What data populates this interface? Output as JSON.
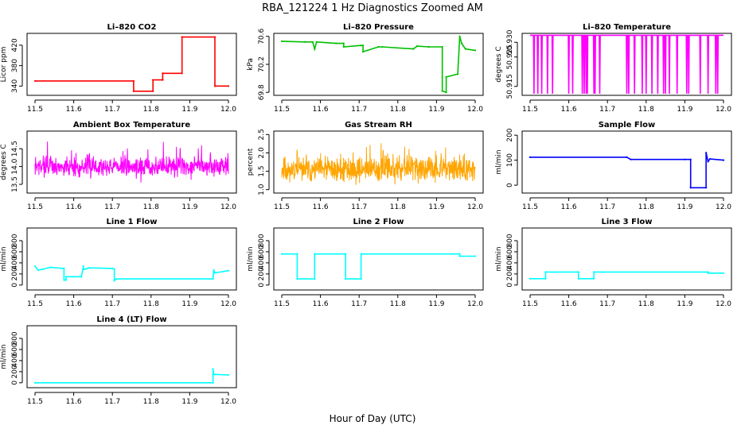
{
  "figure": {
    "title": "RBA_121224  1 Hz Diagnostics Zoomed AM",
    "xlabel": "Hour of Day (UTC)"
  },
  "chart_data": [
    {
      "type": "line",
      "title": "Li–820 CO2",
      "ylabel": "Licor ppm",
      "color": "#ff0000",
      "xlim": [
        11.5,
        12.0
      ],
      "ylim": [
        325,
        440
      ],
      "xticks": [
        "11.5",
        "11.6",
        "11.7",
        "11.8",
        "11.9",
        "12.0"
      ],
      "yticks": [
        {
          "v": 340,
          "t": "340"
        },
        {
          "v": 380,
          "t": "380"
        },
        {
          "v": 420,
          "t": "420"
        }
      ],
      "x": [
        11.5,
        11.755,
        11.755,
        11.805,
        11.805,
        11.83,
        11.83,
        11.88,
        11.88,
        11.965,
        11.965,
        12.0
      ],
      "y": [
        350,
        350,
        330,
        330,
        352,
        352,
        365,
        365,
        436,
        436,
        340,
        340
      ]
    },
    {
      "type": "line",
      "title": "Li–820 Pressure",
      "ylabel": "kPa",
      "color": "#00c000",
      "xlim": [
        11.5,
        12.0
      ],
      "ylim": [
        69.78,
        70.62
      ],
      "xticks": [
        "11.5",
        "11.6",
        "11.7",
        "11.8",
        "11.9",
        "12.0"
      ],
      "yticks": [
        {
          "v": 69.8,
          "t": "69.8"
        },
        {
          "v": 70.2,
          "t": "70.2"
        },
        {
          "v": 70.6,
          "t": "70.6"
        }
      ],
      "x": [
        11.5,
        11.56,
        11.58,
        11.585,
        11.59,
        11.64,
        11.66,
        11.66,
        11.705,
        11.71,
        11.71,
        11.75,
        11.76,
        11.84,
        11.85,
        11.88,
        11.915,
        11.915,
        11.925,
        11.925,
        11.955,
        11.96,
        11.965,
        11.975,
        12.0
      ],
      "y": [
        70.53,
        70.52,
        70.52,
        70.42,
        70.52,
        70.5,
        70.5,
        70.45,
        70.47,
        70.47,
        70.38,
        70.45,
        70.45,
        70.42,
        70.46,
        70.45,
        70.45,
        69.82,
        69.8,
        70.02,
        70.06,
        70.6,
        70.5,
        70.42,
        70.4
      ]
    },
    {
      "type": "line",
      "title": "Li–820 Temperature",
      "ylabel": "degrees C",
      "color": "#ff00ff",
      "xlim": [
        11.5,
        12.0
      ],
      "ylim": [
        50.9125,
        50.9325
      ],
      "xticks": [
        "11.5",
        "11.6",
        "11.7",
        "11.8",
        "11.9",
        "12.0"
      ],
      "yticks": [
        {
          "v": 50.915,
          "t": "50.915"
        },
        {
          "v": 50.925,
          "t": "50.925"
        },
        {
          "v": 50.93,
          "t": "50.930"
        }
      ],
      "flat": 50.9324,
      "low": 50.9125,
      "dips": [
        11.51,
        11.52,
        11.53,
        11.545,
        11.558,
        11.6,
        11.61,
        11.635,
        11.64,
        11.645,
        11.648,
        11.665,
        11.668,
        11.68,
        11.75,
        11.755,
        11.77,
        11.79,
        11.8,
        11.815,
        11.83,
        11.845,
        11.85,
        11.86,
        11.88,
        11.905,
        11.91,
        11.94,
        11.96,
        11.98,
        11.985
      ]
    },
    {
      "type": "line",
      "title": "Ambient Box Temperature",
      "ylabel": "degrees C",
      "color": "#ff00ff",
      "xlim": [
        11.5,
        12.0
      ],
      "ylim": [
        13.3,
        14.95
      ],
      "xticks": [
        "11.5",
        "11.6",
        "11.7",
        "11.8",
        "11.9",
        "12.0"
      ],
      "yticks": [
        {
          "v": 13.5,
          "t": "13.5"
        },
        {
          "v": 14.0,
          "t": "14.0"
        },
        {
          "v": 14.5,
          "t": "14.5"
        }
      ],
      "noise": {
        "center": 14.0,
        "spread": 0.45,
        "points": 700,
        "seed": 7
      }
    },
    {
      "type": "line",
      "title": "Gas Stream RH",
      "ylabel": "percent",
      "color": "#ffa500",
      "xlim": [
        11.5,
        12.0
      ],
      "ylim": [
        0.95,
        2.55
      ],
      "xticks": [
        "11.5",
        "11.6",
        "11.7",
        "11.8",
        "11.9",
        "12.0"
      ],
      "yticks": [
        {
          "v": 1.0,
          "t": "1.0"
        },
        {
          "v": 1.5,
          "t": "1.5"
        },
        {
          "v": 2.0,
          "t": "2.0"
        },
        {
          "v": 2.5,
          "t": "2.5"
        }
      ],
      "noise": {
        "center": 1.55,
        "spread": 0.55,
        "points": 700,
        "seed": 11
      }
    },
    {
      "type": "line",
      "title": "Sample Flow",
      "ylabel": "ml/min",
      "color": "#0000ff",
      "xlim": [
        11.5,
        12.0
      ],
      "ylim": [
        -25,
        210
      ],
      "xticks": [
        "11.5",
        "11.6",
        "11.7",
        "11.8",
        "11.9",
        "12.0"
      ],
      "yticks": [
        {
          "v": 0,
          "t": "0"
        },
        {
          "v": 100,
          "t": "100"
        },
        {
          "v": 200,
          "t": "200"
        }
      ],
      "x": [
        11.5,
        11.75,
        11.76,
        11.9,
        11.915,
        11.915,
        11.955,
        11.955,
        11.96,
        11.965,
        12.0
      ],
      "y": [
        112,
        112,
        103,
        103,
        103,
        -10,
        -10,
        130,
        95,
        105,
        100
      ]
    },
    {
      "type": "line",
      "title": "Line 1 Flow",
      "ylabel": "ml/min",
      "color": "#00ffff",
      "xlim": [
        11.5,
        12.0
      ],
      "ylim": [
        -60,
        1000
      ],
      "xticks": [
        "11.5",
        "11.6",
        "11.7",
        "11.8",
        "11.9",
        "12.0"
      ],
      "yticks": [
        {
          "v": 0,
          "t": "0"
        },
        {
          "v": 200,
          "t": "200"
        },
        {
          "v": 400,
          "t": "400"
        },
        {
          "v": 600,
          "t": "600"
        },
        {
          "v": 800,
          "t": "800"
        }
      ],
      "x": [
        11.5,
        11.508,
        11.52,
        11.54,
        11.575,
        11.575,
        11.58,
        11.58,
        11.62,
        11.625,
        11.625,
        11.64,
        11.7,
        11.705,
        11.705,
        11.71,
        11.96,
        11.962,
        11.965,
        12.0
      ],
      "y": [
        340,
        270,
        285,
        320,
        300,
        90,
        90,
        150,
        150,
        340,
        280,
        310,
        300,
        290,
        80,
        110,
        110,
        270,
        220,
        260
      ]
    },
    {
      "type": "line",
      "title": "Line 2 Flow",
      "ylabel": "ml/min",
      "color": "#00ffff",
      "xlim": [
        11.5,
        12.0
      ],
      "ylim": [
        -60,
        1000
      ],
      "xticks": [
        "11.5",
        "11.6",
        "11.7",
        "11.8",
        "11.9",
        "12.0"
      ],
      "yticks": [
        {
          "v": 0,
          "t": "0"
        },
        {
          "v": 200,
          "t": "200"
        },
        {
          "v": 400,
          "t": "400"
        },
        {
          "v": 600,
          "t": "600"
        },
        {
          "v": 800,
          "t": "800"
        }
      ],
      "x": [
        11.5,
        11.54,
        11.54,
        11.585,
        11.585,
        11.665,
        11.665,
        11.705,
        11.705,
        11.96,
        11.96,
        12.0
      ],
      "y": [
        560,
        560,
        110,
        110,
        560,
        560,
        110,
        110,
        560,
        560,
        520,
        520
      ]
    },
    {
      "type": "line",
      "title": "Line 3 Flow",
      "ylabel": "ml/min",
      "color": "#00ffff",
      "xlim": [
        11.5,
        12.0
      ],
      "ylim": [
        -60,
        1000
      ],
      "xticks": [
        "11.5",
        "11.6",
        "11.7",
        "11.8",
        "11.9",
        "12.0"
      ],
      "yticks": [
        {
          "v": 0,
          "t": "0"
        },
        {
          "v": 200,
          "t": "200"
        },
        {
          "v": 400,
          "t": "400"
        },
        {
          "v": 600,
          "t": "600"
        },
        {
          "v": 800,
          "t": "800"
        }
      ],
      "x": [
        11.5,
        11.54,
        11.54,
        11.625,
        11.625,
        11.665,
        11.665,
        11.96,
        11.96,
        12.0
      ],
      "y": [
        115,
        115,
        235,
        235,
        115,
        115,
        235,
        235,
        215,
        215
      ]
    },
    {
      "type": "line",
      "title": "Line 4 (LT) Flow",
      "ylabel": "ml/min",
      "color": "#00ffff",
      "xlim": [
        11.5,
        12.0
      ],
      "ylim": [
        -60,
        1000
      ],
      "xticks": [
        "11.5",
        "11.6",
        "11.7",
        "11.8",
        "11.9",
        "12.0"
      ],
      "yticks": [
        {
          "v": 0,
          "t": "0"
        },
        {
          "v": 200,
          "t": "200"
        },
        {
          "v": 400,
          "t": "400"
        },
        {
          "v": 600,
          "t": "600"
        },
        {
          "v": 800,
          "t": "800"
        }
      ],
      "x": [
        11.5,
        11.96,
        11.96,
        11.962,
        11.965,
        12.0
      ],
      "y": [
        0,
        0,
        250,
        150,
        150,
        140
      ]
    }
  ]
}
